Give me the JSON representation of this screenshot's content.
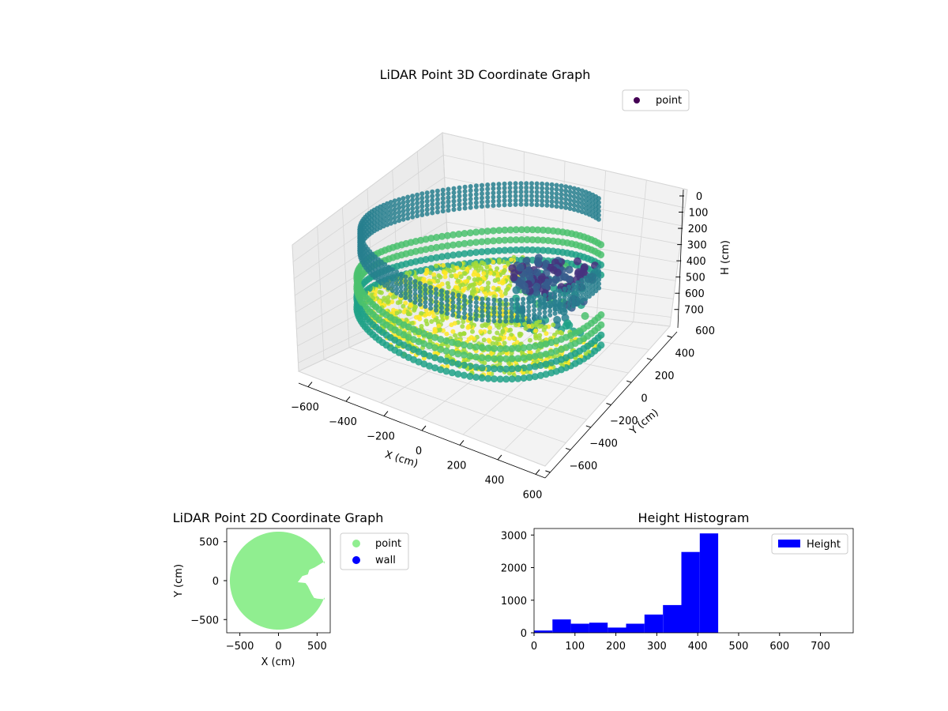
{
  "chart_data": [
    {
      "type": "scatter",
      "projection": "3d",
      "title": "LiDAR Point 3D Coordinate Graph",
      "xlabel": "X (cm)",
      "ylabel": "Y (cm)",
      "zlabel": "H (cm)",
      "xlim": [
        -650,
        650
      ],
      "ylim": [
        -650,
        650
      ],
      "zlim": [
        750,
        0
      ],
      "xticks": [
        "−600",
        "−400",
        "−200",
        "0",
        "200",
        "400",
        "600"
      ],
      "yticks": [
        "−600",
        "−400",
        "−200",
        "0",
        "200",
        "400",
        "600"
      ],
      "zticks": [
        "0",
        "100",
        "200",
        "300",
        "400",
        "500",
        "600",
        "700"
      ],
      "colormap": "viridis",
      "series": [
        {
          "name": "point",
          "color": "#440154"
        }
      ],
      "shape": {
        "floor_radius": 630,
        "wall_height_range": [
          400,
          450
        ],
        "open_sector_deg": [
          -10,
          100
        ],
        "ceiling_height_range": [
          100,
          250
        ]
      },
      "grid": true,
      "legend": "top-right"
    },
    {
      "type": "scatter",
      "title": "LiDAR Point 2D Coordinate Graph",
      "xlabel": "X (cm)",
      "ylabel": "Y (cm)",
      "xlim": [
        -670,
        670
      ],
      "ylim": [
        -670,
        670
      ],
      "xticks": [
        "−500",
        "0",
        "500"
      ],
      "yticks": [
        "500",
        "0",
        "−500"
      ],
      "series": [
        {
          "name": "point",
          "color": "#90ee90"
        },
        {
          "name": "wall",
          "color": "#0000ff"
        }
      ],
      "shape": {
        "radius": 630
      },
      "legend": "outside-right"
    },
    {
      "type": "bar",
      "subtype": "histogram",
      "title": "Height Histogram",
      "xlim": [
        0,
        780
      ],
      "ylim": [
        0,
        3200
      ],
      "xticks": [
        "0",
        "100",
        "200",
        "300",
        "400",
        "500",
        "600",
        "700"
      ],
      "yticks": [
        "0",
        "1000",
        "2000",
        "3000"
      ],
      "bin_width": 45,
      "bin_starts": [
        0,
        45,
        90,
        135,
        180,
        225,
        270,
        315,
        360,
        405
      ],
      "values": [
        70,
        410,
        280,
        310,
        160,
        280,
        560,
        850,
        2480,
        3050
      ],
      "series": [
        {
          "name": "Height",
          "color": "#0000ff"
        }
      ],
      "legend": "top-right"
    }
  ]
}
